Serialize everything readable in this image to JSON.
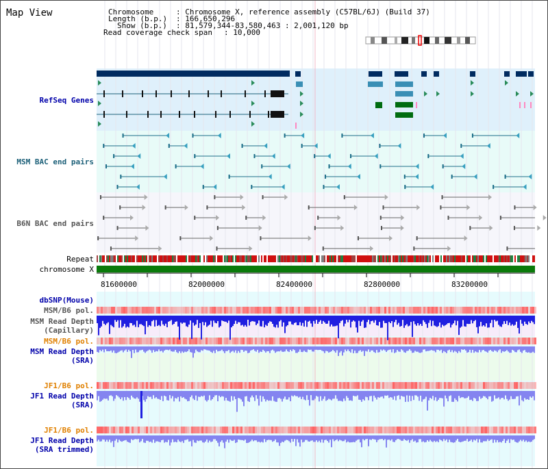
{
  "title": "Map View",
  "info": {
    "chromosome_label": "Chromosome",
    "chromosome_value": ": Chromosome X, reference assembly (C57BL/6J) (Build 37)",
    "length_label": "Length (b.p.)",
    "length_value": ": 166,650,296",
    "show_label": "Show (b.p.)",
    "show_value": ": 81,579,344-83,580,463 : 2,001,120 bp",
    "coverage_label": "Read coverage check span",
    "coverage_value": ": 10,000"
  },
  "tracks": {
    "refseq": "RefSeq Genes",
    "msm_bac": "MSM BAC end pairs",
    "b6n_bac": "B6N BAC end pairs",
    "repeat": "Repeat",
    "chromosome": "chromosome X",
    "dbsnp": "dbSNP(Mouse)",
    "msm_b6_pol_1": "MSM/B6 pol.",
    "msm_read_depth_cap": "MSM Read Depth\n(Capillary)",
    "msm_b6_pol_2": "MSM/B6 pol.",
    "msm_read_depth_sra": "MSM Read Depth\n(SRA)",
    "jf1_b6_pol_1": "JF1/B6 pol.",
    "jf1_read_depth_sra": "JF1 Read Depth\n(SRA)",
    "jf1_b6_pol_2": "JF1/B6 pol.",
    "jf1_read_depth_trim": "JF1 Read Depth\n(SRA trimmed)"
  },
  "axis_ticks": [
    "81600000",
    "82000000",
    "82400000",
    "82800000",
    "83200000"
  ],
  "colors": {
    "refseq_bg": "#dff0fb",
    "bac_bg": "#e8fbf8",
    "b6n_bg": "#f6f6fb",
    "gene_dark": "#002b60",
    "gene_mid": "#3a8fb5",
    "gene_green": "#006c10",
    "depth_blue": "#1f1fe0",
    "depth_light": "#8484f0",
    "pol_red": "#ff5a5a"
  }
}
